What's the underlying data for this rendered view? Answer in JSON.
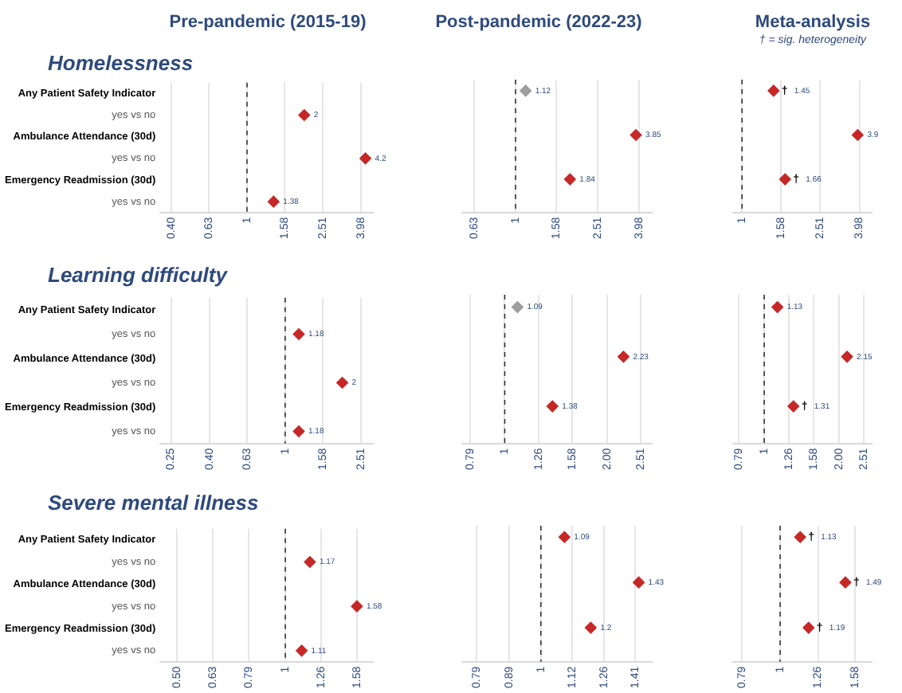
{
  "chart_data": [
    {
      "type": "scatter",
      "orientation": "horizontal",
      "title": "Pre-pandemic (2015-19)",
      "subtitle": "Homelessness",
      "categories": [
        "Any Patient Safety Indicator",
        "yes vs no",
        "Ambulance Attendance (30d)",
        "yes vs no",
        "Emergency Readmission (30d)",
        "yes vs no"
      ],
      "values": [
        null,
        2.0,
        null,
        4.2,
        null,
        1.38
      ],
      "colors": [
        null,
        "#c62828",
        null,
        "#c62828",
        null,
        "#c62828"
      ],
      "log": "x",
      "xlim": [
        0.35,
        4.6
      ],
      "xticks": [
        {
          "value": 0.4,
          "label": "0.40"
        },
        {
          "value": 0.63,
          "label": "0.63"
        },
        {
          "value": 1,
          "label": "1"
        },
        {
          "value": 1.58,
          "label": "1.58"
        },
        {
          "value": 2.51,
          "label": "2.51"
        },
        {
          "value": 3.98,
          "label": "3.98"
        }
      ],
      "grid": "x",
      "marker": "diamond",
      "data_labels": true,
      "ref_lines": [
        {
          "axis": "x",
          "value": 1,
          "line_style": "dashed"
        }
      ]
    },
    {
      "type": "scatter",
      "orientation": "horizontal",
      "title": "Post-pandemic (2022-23)",
      "categories": [
        "Any Patient Safety Indicator",
        "yes vs no",
        "Ambulance Attendance (30d)",
        "yes vs no",
        "Emergency Readmission (30d)",
        "yes vs no"
      ],
      "values": [
        1.12,
        null,
        3.85,
        null,
        1.84,
        null
      ],
      "colors": [
        "#9e9e9e",
        null,
        "#c62828",
        null,
        "#c62828",
        null
      ],
      "log": "x",
      "xlim": [
        0.55,
        4.6
      ],
      "xticks": [
        {
          "value": 0.63,
          "label": "0.63"
        },
        {
          "value": 1,
          "label": "1"
        },
        {
          "value": 1.58,
          "label": "1.58"
        },
        {
          "value": 2.51,
          "label": "2.51"
        },
        {
          "value": 3.98,
          "label": "3.98"
        }
      ],
      "grid": "x",
      "marker": "diamond",
      "data_labels": true,
      "tick_labels": "x",
      "ref_lines": [
        {
          "axis": "x",
          "value": 1,
          "line_style": "dashed"
        }
      ]
    },
    {
      "type": "scatter",
      "orientation": "horizontal",
      "title": "Meta-analysis",
      "subtitle": "† = sig. heterogeneity",
      "categories": [
        "Any Patient Safety Indicator",
        "yes vs no",
        "Ambulance Attendance (30d)",
        "yes vs no",
        "Emergency Readmission (30d)",
        "yes vs no"
      ],
      "values": [
        1.45,
        null,
        3.9,
        null,
        1.66,
        null
      ],
      "colors": [
        "#c62828",
        null,
        "#c62828",
        null,
        "#c62828",
        null
      ],
      "log": "x",
      "xlim": [
        0.9,
        4.6
      ],
      "xticks": [
        {
          "value": 1,
          "label": "1"
        },
        {
          "value": 1.58,
          "label": "1.58"
        },
        {
          "value": 2.51,
          "label": "2.51"
        },
        {
          "value": 3.98,
          "label": "3.98"
        }
      ],
      "grid": "x",
      "marker": "diamond",
      "data_labels": true,
      "tick_labels": "x",
      "ref_lines": [
        {
          "axis": "x",
          "value": 1,
          "line_style": "dashed"
        }
      ],
      "annotations": [
        {
          "text": "†",
          "x": 1.45,
          "y": "Any Patient Safety Indicator"
        },
        {
          "text": "†",
          "x": 1.66,
          "y": "Emergency Readmission (30d)"
        }
      ]
    },
    {
      "type": "scatter",
      "orientation": "horizontal",
      "subtitle": "Learning difficulty",
      "categories": [
        "Any Patient Safety Indicator",
        "yes vs no",
        "Ambulance Attendance (30d)",
        "yes vs no",
        "Emergency Readmission (30d)",
        "yes vs no"
      ],
      "values": [
        null,
        1.18,
        null,
        2.0,
        null,
        1.18
      ],
      "colors": [
        null,
        "#c62828",
        null,
        "#c62828",
        null,
        "#c62828"
      ],
      "log": "x",
      "xlim": [
        0.22,
        2.9
      ],
      "xticks": [
        {
          "value": 0.25,
          "label": "0.25"
        },
        {
          "value": 0.4,
          "label": "0.40"
        },
        {
          "value": 0.63,
          "label": "0.63"
        },
        {
          "value": 1,
          "label": "1"
        },
        {
          "value": 1.58,
          "label": "1.58"
        },
        {
          "value": 2.51,
          "label": "2.51"
        }
      ],
      "grid": "x",
      "marker": "diamond",
      "data_labels": true,
      "ref_lines": [
        {
          "axis": "x",
          "value": 1,
          "line_style": "dashed"
        }
      ]
    },
    {
      "type": "scatter",
      "orientation": "horizontal",
      "categories": [
        "Any Patient Safety Indicator",
        "yes vs no",
        "Ambulance Attendance (30d)",
        "yes vs no",
        "Emergency Readmission (30d)",
        "yes vs no"
      ],
      "values": [
        1.09,
        null,
        2.23,
        null,
        1.38,
        null
      ],
      "colors": [
        "#9e9e9e",
        null,
        "#c62828",
        null,
        "#c62828",
        null
      ],
      "log": "x",
      "xlim": [
        0.75,
        2.7
      ],
      "xticks": [
        {
          "value": 0.79,
          "label": "0.79"
        },
        {
          "value": 1,
          "label": "1"
        },
        {
          "value": 1.26,
          "label": "1.26"
        },
        {
          "value": 1.58,
          "label": "1.58"
        },
        {
          "value": 2.0,
          "label": "2.00"
        },
        {
          "value": 2.51,
          "label": "2.51"
        }
      ],
      "grid": "x",
      "marker": "diamond",
      "data_labels": true,
      "tick_labels": "x",
      "ref_lines": [
        {
          "axis": "x",
          "value": 1,
          "line_style": "dashed"
        }
      ]
    },
    {
      "type": "scatter",
      "orientation": "horizontal",
      "categories": [
        "Any Patient Safety Indicator",
        "yes vs no",
        "Ambulance Attendance (30d)",
        "yes vs no",
        "Emergency Readmission (30d)",
        "yes vs no"
      ],
      "values": [
        1.13,
        null,
        2.15,
        null,
        1.31,
        null
      ],
      "colors": [
        "#c62828",
        null,
        "#c62828",
        null,
        "#c62828",
        null
      ],
      "log": "x",
      "xlim": [
        0.75,
        2.7
      ],
      "xticks": [
        {
          "value": 0.79,
          "label": "0.79"
        },
        {
          "value": 1,
          "label": "1"
        },
        {
          "value": 1.26,
          "label": "1.26"
        },
        {
          "value": 1.58,
          "label": "1.58"
        },
        {
          "value": 2.0,
          "label": "2.00"
        },
        {
          "value": 2.51,
          "label": "2.51"
        }
      ],
      "grid": "x",
      "marker": "diamond",
      "data_labels": true,
      "tick_labels": "x",
      "ref_lines": [
        {
          "axis": "x",
          "value": 1,
          "line_style": "dashed"
        }
      ],
      "annotations": [
        {
          "text": "†",
          "x": 1.31,
          "y": "Emergency Readmission (30d)"
        }
      ]
    },
    {
      "type": "scatter",
      "orientation": "horizontal",
      "subtitle": "Severe mental illness",
      "categories": [
        "Any Patient Safety Indicator",
        "yes vs no",
        "Ambulance Attendance (30d)",
        "yes vs no",
        "Emergency Readmission (30d)",
        "yes vs no"
      ],
      "values": [
        null,
        1.17,
        null,
        1.58,
        null,
        1.11
      ],
      "colors": [
        null,
        "#c62828",
        null,
        "#c62828",
        null,
        "#c62828"
      ],
      "log": "x",
      "xlim": [
        0.45,
        1.75
      ],
      "xticks": [
        {
          "value": 0.5,
          "label": "0.50"
        },
        {
          "value": 0.63,
          "label": "0.63"
        },
        {
          "value": 0.79,
          "label": "0.79"
        },
        {
          "value": 1,
          "label": "1"
        },
        {
          "value": 1.26,
          "label": "1.26"
        },
        {
          "value": 1.58,
          "label": "1.58"
        }
      ],
      "grid": "x",
      "marker": "diamond",
      "data_labels": true,
      "ref_lines": [
        {
          "axis": "x",
          "value": 1,
          "line_style": "dashed"
        }
      ]
    },
    {
      "type": "scatter",
      "orientation": "horizontal",
      "categories": [
        "Any Patient Safety Indicator",
        "yes vs no",
        "Ambulance Attendance (30d)",
        "yes vs no",
        "Emergency Readmission (30d)",
        "yes vs no"
      ],
      "values": [
        1.09,
        null,
        1.43,
        null,
        1.2,
        null
      ],
      "colors": [
        "#c62828",
        null,
        "#c62828",
        null,
        "#c62828",
        null
      ],
      "log": "x",
      "xlim": [
        0.75,
        1.5
      ],
      "xticks": [
        {
          "value": 0.79,
          "label": "0.79"
        },
        {
          "value": 0.89,
          "label": "0.89"
        },
        {
          "value": 1,
          "label": "1"
        },
        {
          "value": 1.12,
          "label": "1.12"
        },
        {
          "value": 1.26,
          "label": "1.26"
        },
        {
          "value": 1.41,
          "label": "1.41"
        }
      ],
      "grid": "x",
      "marker": "diamond",
      "data_labels": true,
      "tick_labels": "x",
      "ref_lines": [
        {
          "axis": "x",
          "value": 1,
          "line_style": "dashed"
        }
      ]
    },
    {
      "type": "scatter",
      "orientation": "horizontal",
      "categories": [
        "Any Patient Safety Indicator",
        "yes vs no",
        "Ambulance Attendance (30d)",
        "yes vs no",
        "Emergency Readmission (30d)",
        "yes vs no"
      ],
      "values": [
        1.13,
        null,
        1.49,
        null,
        1.19,
        null
      ],
      "colors": [
        "#c62828",
        null,
        "#c62828",
        null,
        "#c62828",
        null
      ],
      "log": "x",
      "xlim": [
        0.75,
        1.75
      ],
      "xticks": [
        {
          "value": 0.79,
          "label": "0.79"
        },
        {
          "value": 1,
          "label": "1"
        },
        {
          "value": 1.26,
          "label": "1.26"
        },
        {
          "value": 1.58,
          "label": "1.58"
        }
      ],
      "grid": "x",
      "marker": "diamond",
      "data_labels": true,
      "tick_labels": "x",
      "ref_lines": [
        {
          "axis": "x",
          "value": 1,
          "line_style": "dashed"
        }
      ],
      "annotations": [
        {
          "text": "†",
          "x": 1.13,
          "y": "Any Patient Safety Indicator"
        },
        {
          "text": "†",
          "x": 1.49,
          "y": "Ambulance Attendance (30d)"
        },
        {
          "text": "†",
          "x": 1.19,
          "y": "Emergency Readmission (30d)"
        }
      ]
    }
  ]
}
